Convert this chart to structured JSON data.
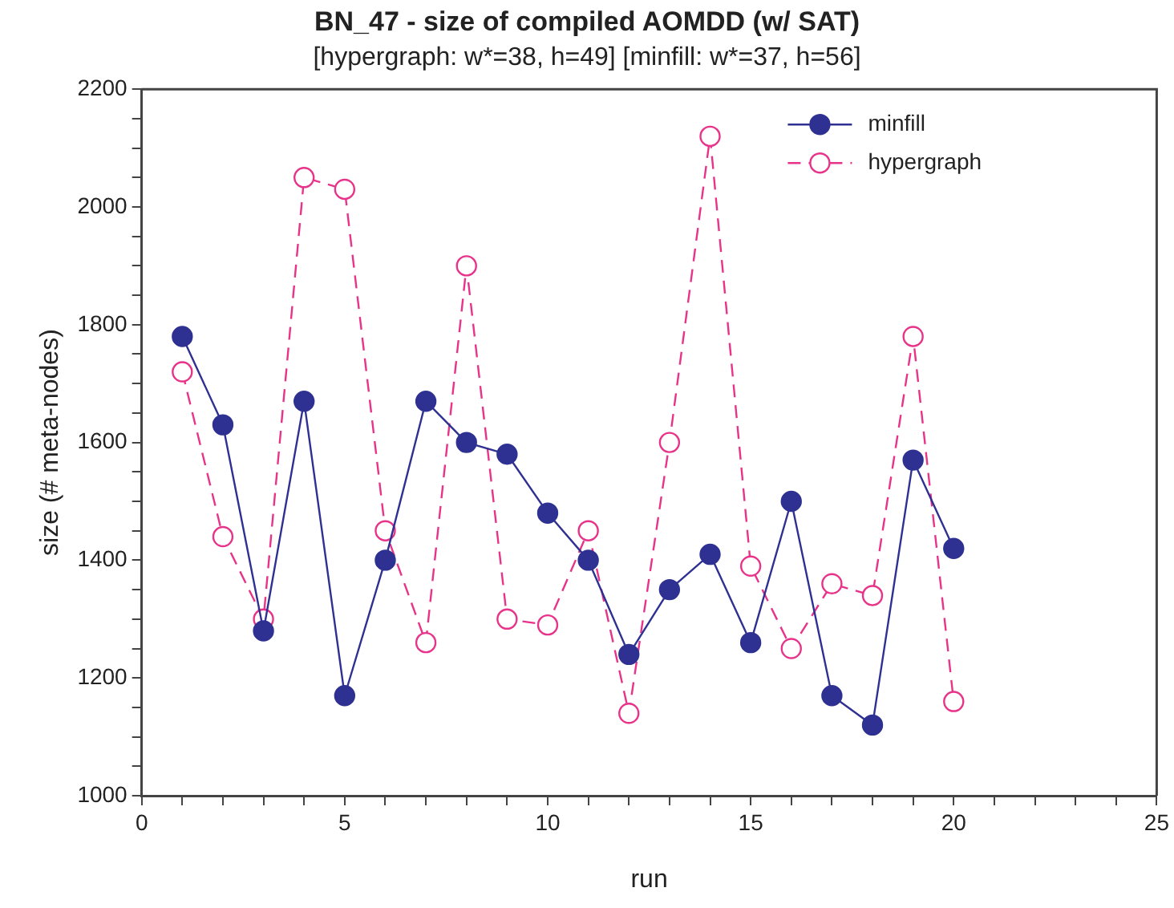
{
  "chart_data": {
    "type": "line",
    "title": "BN_47 - size of compiled AOMDD (w/ SAT)",
    "subtitle": "[hypergraph: w*=38, h=49] [minfill: w*=37, h=56]",
    "xlabel": "run",
    "ylabel": "size (# meta-nodes)",
    "x": [
      1,
      2,
      3,
      4,
      5,
      6,
      7,
      8,
      9,
      10,
      11,
      12,
      13,
      14,
      15,
      16,
      17,
      18,
      19,
      20
    ],
    "series": [
      {
        "name": "minfill",
        "color": "#2e3192",
        "line_style": "solid",
        "values": [
          1780,
          1630,
          1280,
          1670,
          1170,
          1400,
          1670,
          1600,
          1580,
          1480,
          1400,
          1240,
          1350,
          1410,
          1260,
          1500,
          1170,
          1120,
          1570,
          1420
        ]
      },
      {
        "name": "hypergraph",
        "color": "#e8338a",
        "line_style": "dashed",
        "values": [
          1720,
          1440,
          1300,
          2050,
          2030,
          1450,
          1260,
          1900,
          1300,
          1290,
          1450,
          1140,
          1600,
          2120,
          1390,
          1250,
          1360,
          1340,
          1780,
          1160
        ]
      }
    ],
    "xlim": [
      0,
      25
    ],
    "xticks": [
      0,
      {
        "value": 1,
        "label": null
      },
      {
        "value": 2,
        "label": null
      },
      {
        "value": 3,
        "label": null
      },
      {
        "value": 4,
        "label": null
      },
      5,
      {
        "value": 6,
        "label": null
      },
      {
        "value": 7,
        "label": null
      },
      {
        "value": 8,
        "label": null
      },
      {
        "value": 9,
        "label": null
      },
      10,
      {
        "value": 11,
        "label": null
      },
      {
        "value": 12,
        "label": null
      },
      {
        "value": 13,
        "label": null
      },
      {
        "value": 14,
        "label": null
      },
      15,
      {
        "value": 16,
        "label": null
      },
      {
        "value": 17,
        "label": null
      },
      {
        "value": 18,
        "label": null
      },
      {
        "value": 19,
        "label": null
      },
      20,
      {
        "value": 21,
        "label": null
      },
      {
        "value": 22,
        "label": null
      },
      {
        "value": 23,
        "label": null
      },
      {
        "value": 24,
        "label": null
      },
      25
    ],
    "ylim": [
      1000,
      2200
    ],
    "yticks": [
      1000,
      {
        "value": 1050,
        "label": null
      },
      {
        "value": 1100,
        "label": null
      },
      {
        "value": 1150,
        "label": null
      },
      1200,
      {
        "value": 1250,
        "label": null
      },
      {
        "value": 1300,
        "label": null
      },
      {
        "value": 1350,
        "label": null
      },
      1400,
      {
        "value": 1450,
        "label": null
      },
      {
        "value": 1500,
        "label": null
      },
      {
        "value": 1550,
        "label": null
      },
      1600,
      {
        "value": 1650,
        "label": null
      },
      {
        "value": 1700,
        "label": null
      },
      {
        "value": 1750,
        "label": null
      },
      1800,
      {
        "value": 1850,
        "label": null
      },
      {
        "value": 1900,
        "label": null
      },
      {
        "value": 1950,
        "label": null
      },
      2000,
      {
        "value": 2050,
        "label": null
      },
      {
        "value": 2100,
        "label": null
      },
      {
        "value": 2150,
        "label": null
      },
      2200
    ],
    "grid": false,
    "legend": "top right",
    "marker": "circle"
  }
}
